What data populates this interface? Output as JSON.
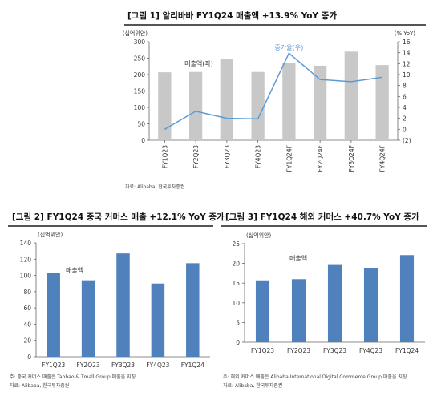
{
  "chart_data": [
    {
      "id": "fig1",
      "type": "bar",
      "title": "[그림 1] 알리바바 FY1Q24 매출액 +13.9% YoY 증가",
      "categories": [
        "FY1Q23",
        "FY2Q23",
        "FY3Q23",
        "FY4Q23",
        "FY1Q24F",
        "FY2Q24F",
        "FY3Q24F",
        "FY4Q24F"
      ],
      "series": [
        {
          "name": "매출액(좌)",
          "type": "bar",
          "axis": "left",
          "color": "#c8c8c8",
          "values": [
            207,
            208,
            248,
            208,
            236,
            227,
            270,
            229
          ]
        },
        {
          "name": "증가율(우)",
          "type": "line",
          "axis": "right",
          "color": "#5b9bd5",
          "values": [
            0,
            3.3,
            2,
            1.9,
            13.9,
            9.1,
            8.7,
            9.5
          ]
        }
      ],
      "ylabel_left": "(십억위안)",
      "ylabel_right": "(% YoY)",
      "ylim_left": [
        0,
        300
      ],
      "ylim_right": [
        -2,
        16
      ],
      "yticks_left": [
        "0",
        "50",
        "100",
        "150",
        "200",
        "250",
        "300"
      ],
      "yticks_right": [
        "(2)",
        "0",
        "2",
        "4",
        "6",
        "8",
        "10",
        "12",
        "14",
        "16"
      ],
      "source": "자료: Alibaba, 한국투자증권"
    },
    {
      "id": "fig2",
      "type": "bar",
      "title": "[그림 2] FY1Q24 중국 커머스 매출 +12.1% YoY 증가",
      "categories": [
        "FY1Q23",
        "FY2Q23",
        "FY3Q23",
        "FY4Q23",
        "FY1Q24"
      ],
      "series": [
        {
          "name": "매출액",
          "color": "#4f81bd",
          "values": [
            103,
            94,
            127,
            90,
            115
          ]
        }
      ],
      "ylabel": "(십억위안)",
      "ylim": [
        0,
        140
      ],
      "yticks": [
        "0",
        "20",
        "40",
        "60",
        "80",
        "100",
        "120",
        "140"
      ],
      "note": "주: 중국 커머스 매출은 Taobao & Tmall Group 매출을 지칭",
      "source": "자료: Alibaba, 한국투자증권"
    },
    {
      "id": "fig3",
      "type": "bar",
      "title": "[그림 3] FY1Q24 해외 커머스 +40.7% YoY 증가",
      "categories": [
        "FY1Q23",
        "FY2Q23",
        "FY3Q23",
        "FY4Q23",
        "FY1Q24"
      ],
      "series": [
        {
          "name": "매출액",
          "color": "#4f81bd",
          "values": [
            15.7,
            16.0,
            19.8,
            18.9,
            22.1
          ]
        }
      ],
      "ylabel": "(십억위안)",
      "ylim": [
        0,
        25
      ],
      "yticks": [
        "0",
        "5",
        "10",
        "15",
        "20",
        "25"
      ],
      "note": "주: 해외 커머스 매출은 Alibaba International Digital Commerce Group 매출을 지칭",
      "source": "자료: Alibaba, 한국투자증권"
    }
  ]
}
